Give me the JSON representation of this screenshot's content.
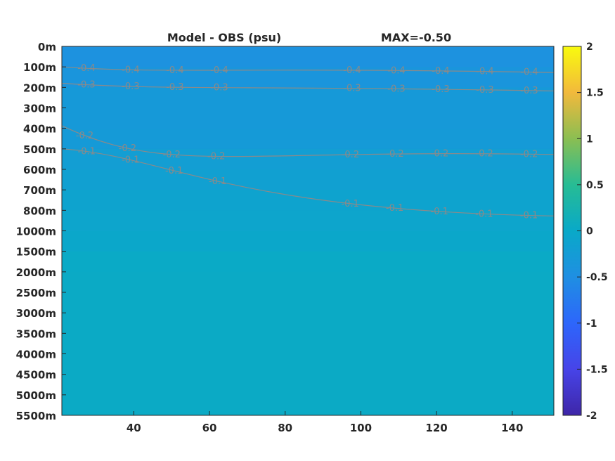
{
  "chart_data": {
    "type": "heatmap",
    "title": "Model - OBS (psu)",
    "subtitle": "MAX=-0.50",
    "xlabel": "",
    "ylabel": "",
    "xlim": [
      21,
      151
    ],
    "x_ticks": [
      40,
      60,
      80,
      100,
      120,
      140
    ],
    "y_ticks": [
      "0m",
      "100m",
      "200m",
      "300m",
      "400m",
      "500m",
      "600m",
      "700m",
      "800m",
      "1000m",
      "1500m",
      "2000m",
      "2500m",
      "3000m",
      "3500m",
      "4000m",
      "4500m",
      "5000m",
      "5500m"
    ],
    "colorbar": {
      "range": [
        -2,
        2
      ],
      "ticks": [
        "2",
        "1.5",
        "1",
        "0.5",
        "0",
        "-0.5",
        "-1",
        "-1.5",
        "-2"
      ],
      "colormap": "parula"
    },
    "field_levels": [
      {
        "depth": "0m",
        "value": -0.45
      },
      {
        "depth": "100m",
        "value": -0.38
      },
      {
        "depth": "200m",
        "value": -0.3
      },
      {
        "depth": "300m",
        "value": -0.3
      },
      {
        "depth": "400m",
        "value": -0.28
      },
      {
        "depth": "500m",
        "value": -0.22
      },
      {
        "depth": "600m",
        "value": -0.18
      },
      {
        "depth": "700m",
        "value": -0.12
      },
      {
        "depth": "800m",
        "value": -0.08
      },
      {
        "depth": "1000m",
        "value": -0.04
      },
      {
        "depth": "1500m",
        "value": 0.02
      },
      {
        "depth": "2000m",
        "value": 0.03
      },
      {
        "depth": "5500m",
        "value": 0.03
      }
    ],
    "contours": [
      {
        "level": -0.4,
        "label": "-0.4",
        "depth_left": "100m",
        "depth_right": "100m"
      },
      {
        "level": -0.3,
        "label": "-0.3",
        "depth_left": "180m",
        "depth_right": "190m"
      },
      {
        "level": -0.2,
        "label": "-0.2",
        "depth_left": "250m",
        "depth_right": "500m"
      },
      {
        "level": -0.1,
        "label": "-0.1",
        "depth_left": "500m",
        "depth_right": "800m"
      }
    ]
  }
}
